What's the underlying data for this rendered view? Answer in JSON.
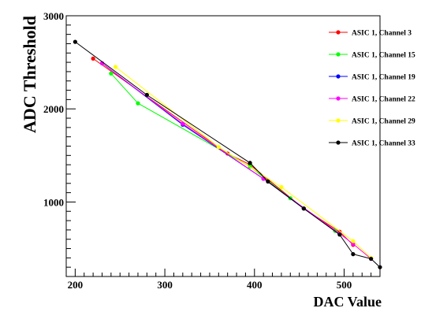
{
  "chart_data": {
    "type": "line",
    "title": "",
    "xlabel": "DAC Value",
    "ylabel": "ADC Threshold",
    "xlim": [
      190,
      540
    ],
    "ylim": [
      200,
      3000
    ],
    "xticks": [
      200,
      300,
      400,
      500
    ],
    "yticks": [
      1000,
      2000,
      3000
    ],
    "grid": false,
    "legend_position": "top-right",
    "series": [
      {
        "name": "ASIC 1, Channel 3",
        "color": "#ff0000",
        "x": [
          220,
          370,
          395,
          455,
          495,
          510
        ],
        "y": [
          2540,
          1520,
          1400,
          930,
          680,
          540
        ]
      },
      {
        "name": "ASIC 1, Channel 15",
        "color": "#00ff00",
        "x": [
          240,
          270,
          395,
          440,
          490
        ],
        "y": [
          2380,
          2060,
          1380,
          1040,
          690
        ]
      },
      {
        "name": "ASIC 1, Channel 19",
        "color": "#0000ff",
        "x": [
          230,
          320,
          410,
          455,
          495
        ],
        "y": [
          2490,
          1830,
          1250,
          930,
          660
        ]
      },
      {
        "name": "ASIC 1, Channel 22",
        "color": "#ff00ff",
        "x": [
          230,
          320,
          410,
          495,
          510,
          530
        ],
        "y": [
          2490,
          1840,
          1250,
          660,
          550,
          390
        ]
      },
      {
        "name": "ASIC 1, Channel 29",
        "color": "#ffff00",
        "x": [
          245,
          360,
          430,
          510,
          530
        ],
        "y": [
          2450,
          1590,
          1160,
          580,
          400
        ]
      },
      {
        "name": "ASIC 1, Channel 33",
        "color": "#000000",
        "x": [
          200,
          280,
          395,
          415,
          455,
          495,
          510,
          530,
          540
        ],
        "y": [
          2720,
          2150,
          1420,
          1220,
          930,
          650,
          440,
          390,
          300
        ]
      }
    ]
  }
}
